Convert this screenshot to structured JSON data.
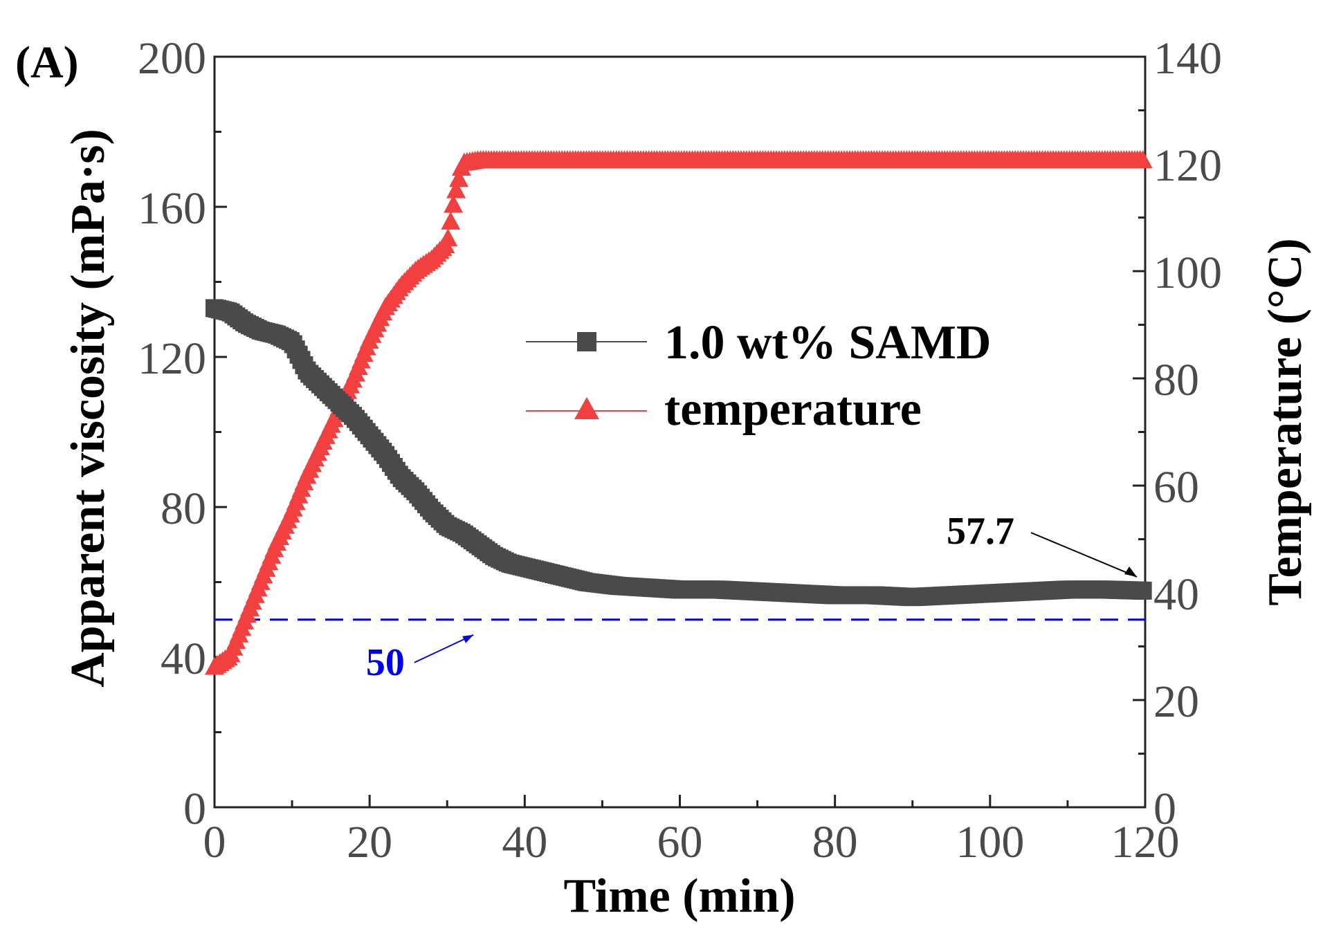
{
  "chart_data": {
    "type": "line",
    "panel_label": "(A)",
    "xlabel": "Time (min)",
    "ylabel_left": "Apparent viscosity (mPa·s)",
    "ylabel_right": "Temperature (°C)",
    "xlim": [
      0,
      120
    ],
    "ylim_left": [
      0,
      200
    ],
    "ylim_right": [
      0,
      140
    ],
    "x_ticks": [
      "0",
      "20",
      "40",
      "60",
      "80",
      "100",
      "120"
    ],
    "y_left_ticks": [
      "0",
      "40",
      "80",
      "120",
      "160",
      "200"
    ],
    "y_right_ticks": [
      "0",
      "20",
      "40",
      "60",
      "80",
      "100",
      "120",
      "140"
    ],
    "grid": false,
    "legend_position": "center-right",
    "series": [
      {
        "name": "1.0 wt% SAMD",
        "axis": "left",
        "color": "#4a4a4a",
        "marker": "square",
        "x": [
          0,
          2,
          4,
          6,
          8,
          10,
          12,
          14,
          16,
          18,
          20,
          22,
          24,
          26,
          28,
          30,
          32,
          34,
          36,
          38,
          40,
          44,
          48,
          52,
          56,
          60,
          65,
          70,
          75,
          80,
          85,
          90,
          95,
          100,
          105,
          110,
          115,
          120
        ],
        "values": [
          133,
          132,
          129,
          127,
          126,
          124,
          116,
          112,
          108,
          104,
          99,
          94,
          88,
          84,
          79,
          75,
          73,
          70,
          67,
          65,
          64,
          62,
          60,
          59,
          58.5,
          58,
          58,
          57.5,
          57,
          56.5,
          56.5,
          56,
          56.5,
          57,
          57.5,
          58,
          58,
          57.7
        ]
      },
      {
        "name": "temperature",
        "axis": "right",
        "color": "#f24040",
        "marker": "triangle",
        "x": [
          0,
          2,
          4,
          6,
          8,
          10,
          12,
          14,
          16,
          18,
          20,
          22,
          24,
          26,
          28,
          30,
          31,
          32,
          34,
          40,
          50,
          60,
          70,
          80,
          90,
          100,
          110,
          120
        ],
        "values": [
          26,
          28,
          35,
          42,
          49,
          55,
          62,
          68,
          74,
          80,
          87,
          93,
          97,
          100,
          102,
          105,
          114,
          120,
          120.5,
          120.5,
          120.5,
          120.5,
          120.5,
          120.5,
          120.5,
          120.5,
          120.5,
          120.5
        ]
      }
    ],
    "reference_line": {
      "value": 50,
      "axis": "left",
      "color": "#0000ee",
      "style": "dashed",
      "label": "50"
    },
    "annotations": [
      {
        "text": "57.7",
        "target_x": 120,
        "target_y": 57.7,
        "axis": "left"
      }
    ]
  }
}
